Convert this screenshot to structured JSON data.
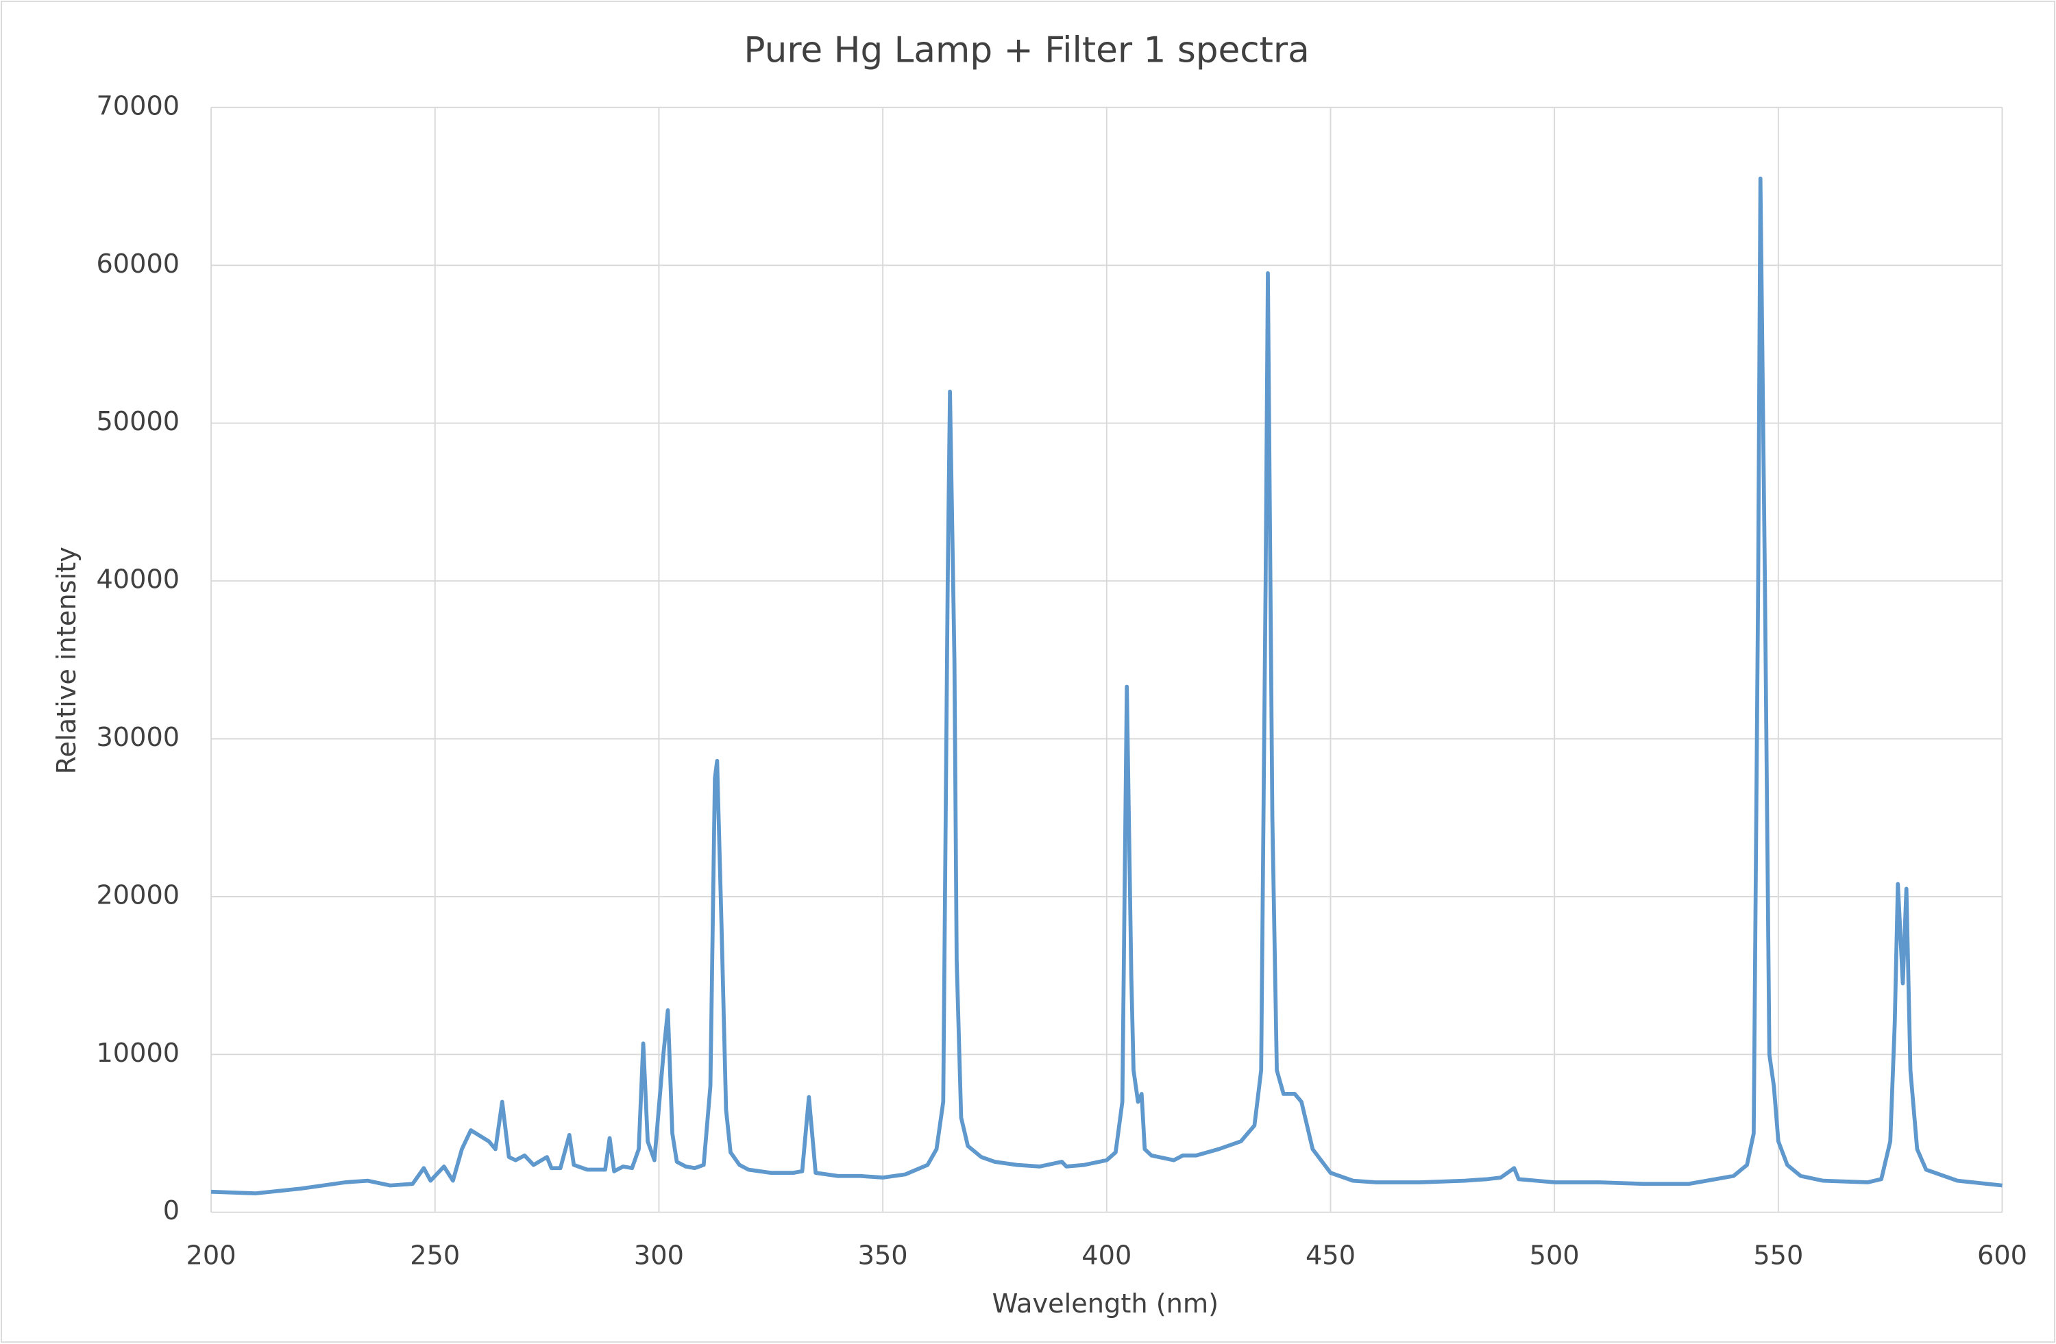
{
  "chart_data": {
    "type": "line",
    "title": "Pure Hg Lamp + Filter 1 spectra",
    "x_label": "Wavelength (nm)",
    "y_label": "Relative intensity",
    "xlim": [
      200,
      600
    ],
    "xticks": [
      200,
      250,
      300,
      350,
      400,
      450,
      500,
      550,
      600
    ],
    "ylim": [
      0,
      70000
    ],
    "yticks": [
      0,
      10000,
      20000,
      30000,
      40000,
      50000,
      60000,
      70000
    ],
    "grid": true,
    "series": [
      {
        "color": "#5f98cd",
        "x": [
          200,
          210,
          220,
          230,
          235,
          240,
          245,
          247.5,
          249,
          252,
          254,
          256,
          258,
          262,
          263.5,
          265,
          266.5,
          268,
          270,
          272,
          275,
          276,
          278,
          280,
          281,
          284,
          288,
          289,
          290,
          292,
          294,
          295.5,
          296.5,
          297.5,
          299,
          301,
          302,
          303,
          304,
          306,
          308,
          310,
          311.5,
          312.5,
          313,
          314,
          315,
          316,
          318,
          320,
          325,
          330,
          332,
          333.5,
          335,
          340,
          345,
          350,
          355,
          360,
          362,
          363.5,
          364.5,
          365,
          366,
          366.5,
          367.5,
          369,
          372,
          375,
          380,
          385,
          390,
          391,
          395,
          400,
          402,
          403.5,
          404.5,
          405.5,
          406,
          407,
          407.8,
          408.5,
          410,
          415,
          417,
          420,
          425,
          430,
          433,
          434.5,
          435.5,
          436,
          437,
          438,
          439.5,
          442,
          443.5,
          446,
          450,
          455,
          460,
          470,
          480,
          485,
          488,
          491,
          492,
          500,
          510,
          520,
          530,
          540,
          543,
          544.5,
          545.5,
          546,
          547,
          548,
          549,
          550,
          552,
          555,
          560,
          570,
          573,
          575,
          576,
          576.7,
          577.8,
          578.6,
          579.5,
          581,
          583,
          590,
          600
        ],
        "values": [
          1300,
          1200,
          1500,
          1900,
          2000,
          1700,
          1800,
          2800,
          2000,
          2900,
          2000,
          4000,
          5200,
          4500,
          4000,
          7000,
          3500,
          3300,
          3600,
          3000,
          3500,
          2800,
          2800,
          4900,
          3000,
          2700,
          2700,
          4700,
          2600,
          2900,
          2800,
          4000,
          10700,
          4500,
          3300,
          10000,
          12800,
          5000,
          3200,
          2900,
          2800,
          3000,
          8000,
          27500,
          28600,
          18000,
          6500,
          3800,
          3000,
          2700,
          2500,
          2500,
          2600,
          7300,
          2500,
          2300,
          2300,
          2200,
          2400,
          3000,
          4000,
          7000,
          40000,
          52000,
          35000,
          16000,
          6000,
          4200,
          3500,
          3200,
          3000,
          2900,
          3200,
          2900,
          3000,
          3300,
          3800,
          7000,
          33300,
          15000,
          9000,
          7000,
          7500,
          4000,
          3600,
          3300,
          3600,
          3600,
          4000,
          4500,
          5500,
          9000,
          40000,
          59500,
          25000,
          9000,
          7500,
          7500,
          7000,
          4000,
          2500,
          2000,
          1900,
          1900,
          2000,
          2100,
          2200,
          2800,
          2100,
          1900,
          1900,
          1800,
          1800,
          2300,
          3000,
          5000,
          40000,
          65500,
          40000,
          10000,
          8000,
          4500,
          3000,
          2300,
          2000,
          1900,
          2100,
          4500,
          12000,
          20800,
          14500,
          20500,
          9000,
          4000,
          2700,
          2000,
          1700
        ]
      }
    ]
  }
}
